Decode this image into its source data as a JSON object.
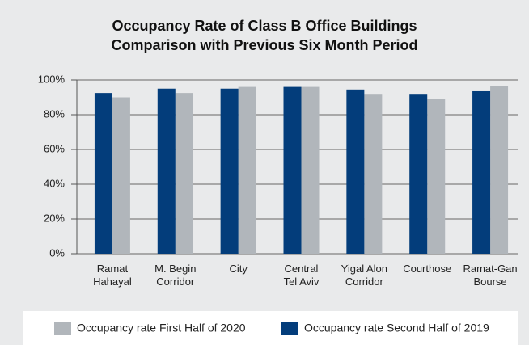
{
  "chart_data": {
    "type": "bar",
    "title": "Occupancy Rate of Class B Office Buildings\nComparison with Previous Six Month Period",
    "categories": [
      "Ramat\nHahayal",
      "M. Begin\nCorridor",
      "City",
      "Central\nTel Aviv",
      "Yigal Alon\nCorridor",
      "Courthose",
      "Ramat-Gan\nBourse"
    ],
    "series": [
      {
        "name": "Occupancy rate First Half of 2020",
        "color": "#b1b6bb",
        "values": [
          90,
          92.5,
          96,
          96,
          92,
          89,
          96.5
        ]
      },
      {
        "name": "Occupancy rate Second Half of 2019",
        "color": "#033d7b",
        "values": [
          92.5,
          95,
          95,
          96,
          94.5,
          92,
          93.5
        ]
      }
    ],
    "ylim": [
      0,
      100
    ],
    "yticks": [
      {
        "value": 0,
        "label": "0%"
      },
      {
        "value": 20,
        "label": "20%"
      },
      {
        "value": 40,
        "label": "40%"
      },
      {
        "value": 60,
        "label": "60%"
      },
      {
        "value": 80,
        "label": "80%"
      },
      {
        "value": 100,
        "label": "100%"
      }
    ],
    "grid": true,
    "legend": "bottom"
  }
}
